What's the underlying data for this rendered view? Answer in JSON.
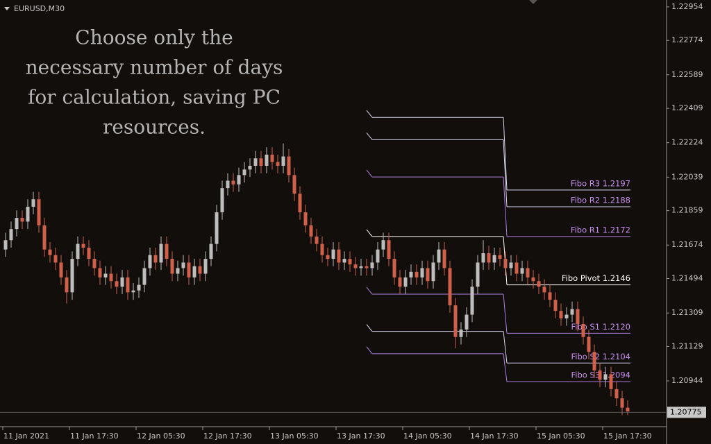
{
  "chart_data": {
    "type": "candlestick",
    "symbol": "EURUSD,M30",
    "annotation": [
      "Choose only the",
      "necessary number of days",
      "for calculation, saving PC",
      "resources."
    ],
    "up_color": "#bdbdbd",
    "down_color": "#d0604a",
    "open": [
      1.2165,
      1.217,
      1.2176,
      1.2182,
      1.218,
      1.2188,
      1.2192,
      1.2178,
      1.2165,
      1.2162,
      1.2158,
      1.215,
      1.2142,
      1.216,
      1.2168,
      1.2166,
      1.216,
      1.2155,
      1.215,
      1.2152,
      1.2148,
      1.2145,
      1.215,
      1.2142,
      1.2143,
      1.2146,
      1.2155,
      1.2162,
      1.2158,
      1.2168,
      1.216,
      1.2152,
      1.2155,
      1.2158,
      1.215,
      1.2156,
      1.2152,
      1.216,
      1.2168,
      1.2185,
      1.2198,
      1.2202,
      1.22,
      1.2205,
      1.2208,
      1.221,
      1.2214,
      1.221,
      1.2216,
      1.2212,
      1.221,
      1.2215,
      1.2205,
      1.2195,
      1.2185,
      1.2178,
      1.2172,
      1.2168,
      1.2162,
      1.216,
      1.2165,
      1.2158,
      1.216,
      1.2157,
      1.2155,
      1.2156,
      1.2155,
      1.2158,
      1.2165,
      1.217,
      1.216,
      1.215,
      1.2145,
      1.215,
      1.2153,
      1.215,
      1.2155,
      1.2148,
      1.2158,
      1.2165,
      1.2155,
      1.2135,
      1.2118,
      1.2122,
      1.213,
      1.2145,
      1.2158,
      1.2163,
      1.2158,
      1.2162,
      1.216,
      1.2155,
      1.2158,
      1.2152,
      1.2155,
      1.215,
      1.2148,
      1.2145,
      1.2142,
      1.2138,
      1.2132,
      1.2128,
      1.213,
      1.2133,
      1.2125,
      1.2118,
      1.211,
      1.21,
      1.2095,
      1.2098,
      1.209,
      1.2085,
      1.208
    ],
    "high": [
      1.2174,
      1.218,
      1.2186,
      1.2186,
      1.2192,
      1.2196,
      1.2196,
      1.2182,
      1.2169,
      1.2166,
      1.2162,
      1.2154,
      1.2164,
      1.2172,
      1.2172,
      1.217,
      1.2164,
      1.2159,
      1.2156,
      1.2156,
      1.2152,
      1.2154,
      1.2154,
      1.2147,
      1.215,
      1.2159,
      1.2166,
      1.2166,
      1.2172,
      1.2172,
      1.2164,
      1.2159,
      1.2162,
      1.2162,
      1.216,
      1.216,
      1.2164,
      1.2172,
      1.2189,
      1.2202,
      1.2206,
      1.2206,
      1.2209,
      1.2212,
      1.2214,
      1.2218,
      1.2218,
      1.222,
      1.222,
      1.2216,
      1.2222,
      1.2219,
      1.2209,
      1.2199,
      1.2189,
      1.2182,
      1.2176,
      1.2172,
      1.2166,
      1.2169,
      1.2169,
      1.2164,
      1.2164,
      1.2161,
      1.216,
      1.216,
      1.2162,
      1.2169,
      1.2174,
      1.2174,
      1.2164,
      1.2154,
      1.2154,
      1.2157,
      1.2157,
      1.2159,
      1.2159,
      1.2162,
      1.2169,
      1.2169,
      1.2159,
      1.2139,
      1.2126,
      1.2134,
      1.2149,
      1.2162,
      1.217,
      1.2167,
      1.2166,
      1.2166,
      1.2164,
      1.2162,
      1.2162,
      1.2159,
      1.2159,
      1.2154,
      1.2152,
      1.2149,
      1.2146,
      1.2142,
      1.2136,
      1.2134,
      1.2137,
      1.2137,
      1.2129,
      1.2122,
      1.2114,
      1.2104,
      1.2102,
      1.2102,
      1.2094,
      1.2089,
      1.2084
    ],
    "low": [
      1.2161,
      1.2166,
      1.2172,
      1.2176,
      1.2176,
      1.2184,
      1.2174,
      1.2161,
      1.2158,
      1.2154,
      1.2146,
      1.2136,
      1.2138,
      1.2156,
      1.2162,
      1.2156,
      1.2151,
      1.2146,
      1.2146,
      1.2144,
      1.2141,
      1.2141,
      1.2138,
      1.2138,
      1.2139,
      1.2142,
      1.2151,
      1.2154,
      1.2154,
      1.2156,
      1.2148,
      1.2148,
      1.2151,
      1.2146,
      1.2146,
      1.2148,
      1.2148,
      1.2156,
      1.2164,
      1.2181,
      1.2194,
      1.2196,
      1.2196,
      1.2201,
      1.2204,
      1.2206,
      1.2206,
      1.2206,
      1.2208,
      1.2206,
      1.2206,
      1.2201,
      1.2191,
      1.2181,
      1.2174,
      1.2168,
      1.2164,
      1.2158,
      1.2156,
      1.2156,
      1.2154,
      1.2154,
      1.2153,
      1.2151,
      1.2151,
      1.2151,
      1.2151,
      1.2154,
      1.2161,
      1.2156,
      1.2146,
      1.2141,
      1.2141,
      1.2146,
      1.2146,
      1.2146,
      1.2144,
      1.2144,
      1.2154,
      1.2151,
      1.2131,
      1.2112,
      1.2114,
      1.2118,
      1.2126,
      1.2141,
      1.2154,
      1.2154,
      1.2154,
      1.2156,
      1.2151,
      1.2151,
      1.2148,
      1.2148,
      1.2146,
      1.2144,
      1.2141,
      1.2138,
      1.2134,
      1.2128,
      1.2124,
      1.2124,
      1.2126,
      1.2121,
      1.2114,
      1.2106,
      1.2096,
      1.2091,
      1.2091,
      1.2086,
      1.2081,
      1.2076,
      1.2076
    ],
    "close": [
      1.217,
      1.2176,
      1.2182,
      1.218,
      1.2188,
      1.2192,
      1.2178,
      1.2165,
      1.2162,
      1.2158,
      1.215,
      1.2142,
      1.216,
      1.2168,
      1.2166,
      1.216,
      1.2155,
      1.215,
      1.2152,
      1.2148,
      1.2145,
      1.215,
      1.2142,
      1.2143,
      1.2146,
      1.2155,
      1.2162,
      1.2158,
      1.2168,
      1.216,
      1.2152,
      1.2155,
      1.2158,
      1.215,
      1.2156,
      1.2152,
      1.216,
      1.2168,
      1.2185,
      1.2198,
      1.2202,
      1.22,
      1.2205,
      1.2208,
      1.221,
      1.2214,
      1.221,
      1.2216,
      1.2212,
      1.221,
      1.2215,
      1.2205,
      1.2195,
      1.2185,
      1.2178,
      1.2172,
      1.2168,
      1.2162,
      1.216,
      1.2165,
      1.2158,
      1.216,
      1.2157,
      1.2155,
      1.2156,
      1.2155,
      1.2158,
      1.2165,
      1.217,
      1.216,
      1.215,
      1.2145,
      1.215,
      1.2153,
      1.215,
      1.2155,
      1.2148,
      1.2158,
      1.2165,
      1.2155,
      1.2135,
      1.2118,
      1.2122,
      1.213,
      1.2145,
      1.2158,
      1.2163,
      1.2158,
      1.2162,
      1.216,
      1.2155,
      1.2158,
      1.2152,
      1.2155,
      1.215,
      1.2148,
      1.2145,
      1.2142,
      1.2138,
      1.2132,
      1.2128,
      1.213,
      1.2133,
      1.2125,
      1.2118,
      1.211,
      1.21,
      1.2095,
      1.2098,
      1.209,
      1.2085,
      1.208,
      1.2078
    ],
    "xlim": [
      -0.5,
      112.5
    ],
    "xticks": [
      {
        "value": 0,
        "label": "11 Jan 2021"
      },
      {
        "value": 12,
        "label": "11 Jan 17:30"
      },
      {
        "value": 24,
        "label": "12 Jan 05:30"
      },
      {
        "value": 36,
        "label": "12 Jan 17:30"
      },
      {
        "value": 48,
        "label": "13 Jan 05:30"
      },
      {
        "value": 60,
        "label": "13 Jan 17:30"
      },
      {
        "value": 72,
        "label": "14 Jan 05:30"
      },
      {
        "value": 84,
        "label": "14 Jan 17:30"
      },
      {
        "value": 96,
        "label": "15 Jan 05:30"
      },
      {
        "value": 108,
        "label": "15 Jan 17:30"
      }
    ],
    "ylim": [
      1.20698,
      1.22991
    ],
    "yticks": [
      1.22954,
      1.22774,
      1.22589,
      1.22409,
      1.22224,
      1.22039,
      1.21859,
      1.21674,
      1.21494,
      1.21309,
      1.21129,
      1.20944
    ],
    "current_price": 1.20775,
    "pivot_levels": [
      {
        "label": "Fibo R3 1.2197",
        "value": 1.2197,
        "previous": 1.2236,
        "color": "#d8d8f0",
        "label_color": "#c890f0"
      },
      {
        "label": "Fibo R2 1.2188",
        "value": 1.2188,
        "previous": 1.2224,
        "color": "#d8d8f0",
        "label_color": "#c890f0"
      },
      {
        "label": "Fibo R1 1.2172",
        "value": 1.2172,
        "previous": 1.2204,
        "color": "#b080e0",
        "label_color": "#c890f0"
      },
      {
        "label": "Fibo Pivot 1.2146",
        "value": 1.2146,
        "previous": 1.2172,
        "color": "#ffffff",
        "label_color": "#ffffff"
      },
      {
        "label": "Fibo S1 1.2120",
        "value": 1.212,
        "previous": 1.2141,
        "color": "#b080e0",
        "label_color": "#c890f0"
      },
      {
        "label": "Fibo S2 1.2104",
        "value": 1.2104,
        "previous": 1.2121,
        "color": "#d8d8f0",
        "label_color": "#c890f0"
      },
      {
        "label": "Fibo S3 1.2094",
        "value": 1.2094,
        "previous": 1.2109,
        "color": "#b080e0",
        "label_color": "#c890f0"
      }
    ]
  }
}
